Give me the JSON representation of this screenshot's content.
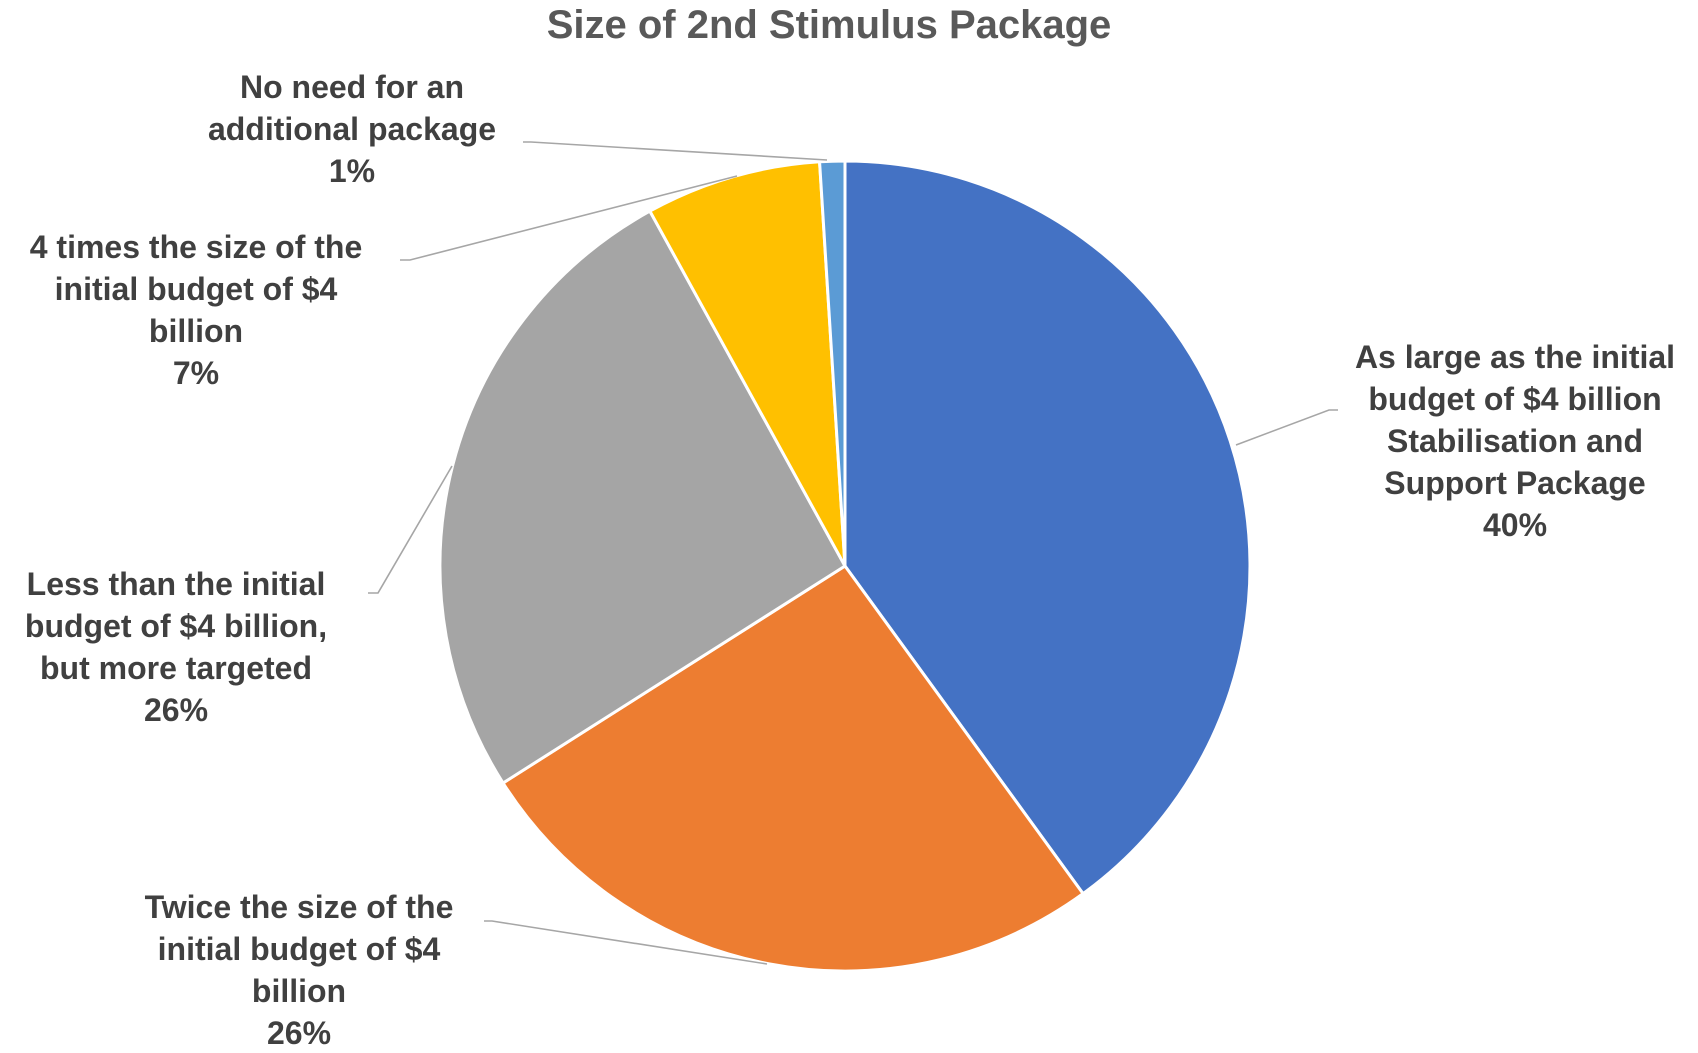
{
  "chart_data": {
    "type": "pie",
    "title": "Size of 2nd Stimulus Package",
    "slices": [
      {
        "label_lines": [
          "As large as the initial",
          "budget of $4 billion",
          "Stabilisation and",
          "Support Package"
        ],
        "value": 40,
        "value_label": "40%",
        "color": "#4472C4"
      },
      {
        "label_lines": [
          "Twice the size of the",
          "initial budget of $4",
          "billion"
        ],
        "value": 26,
        "value_label": "26%",
        "color": "#ED7D31"
      },
      {
        "label_lines": [
          "Less than the initial",
          "budget of $4 billion,",
          "but more targeted"
        ],
        "value": 26,
        "value_label": "26%",
        "color": "#A5A5A5"
      },
      {
        "label_lines": [
          "4 times the size of the",
          "initial budget of $4",
          "billion"
        ],
        "value": 7,
        "value_label": "7%",
        "color": "#FFC000"
      },
      {
        "label_lines": [
          "No need for an",
          "additional package"
        ],
        "value": 1,
        "value_label": "1%",
        "color": "#5B9BD5"
      }
    ],
    "legend": "none"
  }
}
